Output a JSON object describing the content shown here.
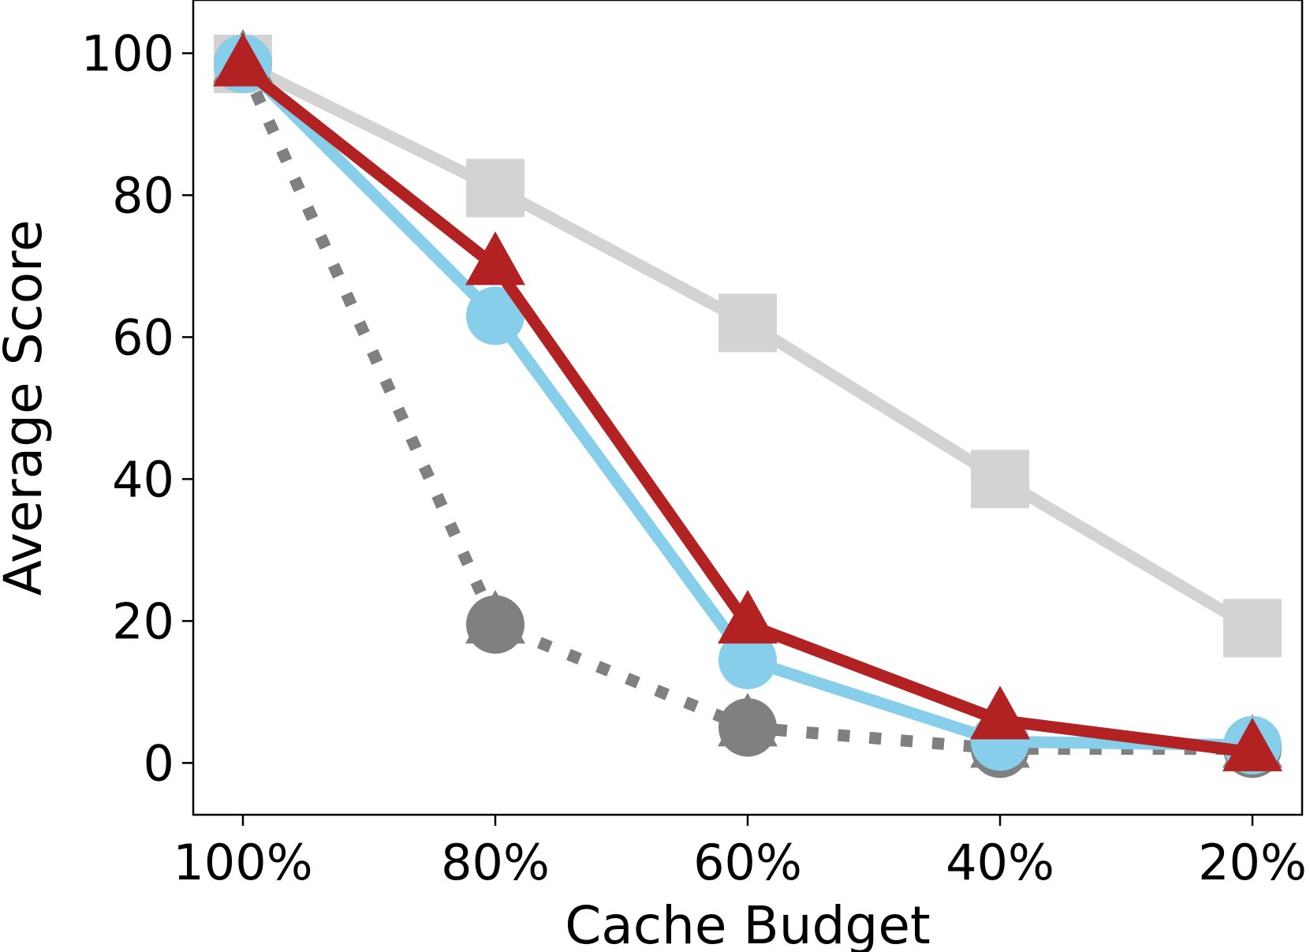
{
  "chart_data": {
    "type": "line",
    "title": "",
    "xlabel": "Cache Budget",
    "ylabel": "Average Score",
    "categories": [
      "100%",
      "80%",
      "60%",
      "40%",
      "20%"
    ],
    "ylim": [
      -7.3,
      107.5
    ],
    "yticks": [
      0,
      20,
      40,
      60,
      80,
      100
    ],
    "grid": false,
    "legend": "none",
    "series": [
      {
        "values": [
          98.5,
          81,
          62,
          40,
          19
        ],
        "color": "#d3d3d3",
        "marker": "square",
        "line": "solid"
      },
      {
        "values": [
          98.5,
          19.5,
          5,
          2,
          2
        ],
        "color": "#808080",
        "marker": "triangle",
        "line": "dotted"
      },
      {
        "values": [
          98.5,
          19.5,
          5,
          2,
          2
        ],
        "color": "#808080",
        "marker": "circle",
        "line": "dotted"
      },
      {
        "values": [
          98.5,
          63,
          14.5,
          3,
          2.5
        ],
        "color": "#87ceeb",
        "marker": "circle",
        "line": "solid"
      },
      {
        "values": [
          98,
          70,
          19.5,
          6,
          1.5
        ],
        "color": "#b22222",
        "marker": "triangle",
        "line": "solid"
      }
    ]
  }
}
